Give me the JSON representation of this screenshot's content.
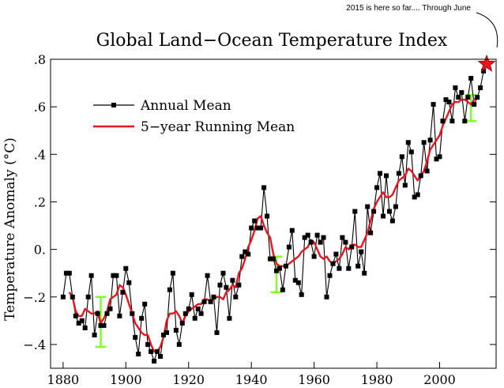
{
  "annotation": "2015 is here so far.... Through June",
  "chart_data": {
    "type": "line",
    "title": "Global Land−Ocean Temperature Index",
    "xlabel": "",
    "ylabel": "Temperature Anomaly (°C)",
    "xlim": [
      1876,
      2018
    ],
    "ylim": [
      -0.5,
      0.8
    ],
    "xticks": [
      1880,
      1900,
      1920,
      1940,
      1960,
      1980,
      2000
    ],
    "xtick_labels": [
      "1880",
      "1900",
      "1920",
      "1940",
      "1960",
      "1980",
      "2000"
    ],
    "yticks": [
      -0.4,
      -0.2,
      0.0,
      0.2,
      0.4,
      0.6,
      0.8
    ],
    "ytick_labels": [
      "−.4",
      "−.2",
      "0.",
      ".2",
      ".4",
      ".6",
      ".8"
    ],
    "legend_position": "upper-left",
    "series": [
      {
        "name": "Annual Mean",
        "color": "#000000",
        "marker": "square",
        "x": [
          1880,
          1881,
          1882,
          1883,
          1884,
          1885,
          1886,
          1887,
          1888,
          1889,
          1890,
          1891,
          1892,
          1893,
          1894,
          1895,
          1896,
          1897,
          1898,
          1899,
          1900,
          1901,
          1902,
          1903,
          1904,
          1905,
          1906,
          1907,
          1908,
          1909,
          1910,
          1911,
          1912,
          1913,
          1914,
          1915,
          1916,
          1917,
          1918,
          1919,
          1920,
          1921,
          1922,
          1923,
          1924,
          1925,
          1926,
          1927,
          1928,
          1929,
          1930,
          1931,
          1932,
          1933,
          1934,
          1935,
          1936,
          1937,
          1938,
          1939,
          1940,
          1941,
          1942,
          1943,
          1944,
          1945,
          1946,
          1947,
          1948,
          1949,
          1950,
          1951,
          1952,
          1953,
          1954,
          1955,
          1956,
          1957,
          1958,
          1959,
          1960,
          1961,
          1962,
          1963,
          1964,
          1965,
          1966,
          1967,
          1968,
          1969,
          1970,
          1971,
          1972,
          1973,
          1974,
          1975,
          1976,
          1977,
          1978,
          1979,
          1980,
          1981,
          1982,
          1983,
          1984,
          1985,
          1986,
          1987,
          1988,
          1989,
          1990,
          1991,
          1992,
          1993,
          1994,
          1995,
          1996,
          1997,
          1998,
          1999,
          2000,
          2001,
          2002,
          2003,
          2004,
          2005,
          2006,
          2007,
          2008,
          2009,
          2010,
          2011,
          2012,
          2013,
          2014
        ],
        "y": [
          -0.2,
          -0.1,
          -0.1,
          -0.2,
          -0.28,
          -0.31,
          -0.3,
          -0.33,
          -0.2,
          -0.11,
          -0.36,
          -0.27,
          -0.32,
          -0.32,
          -0.27,
          -0.25,
          -0.11,
          -0.11,
          -0.28,
          -0.18,
          -0.08,
          -0.14,
          -0.27,
          -0.37,
          -0.44,
          -0.29,
          -0.23,
          -0.4,
          -0.43,
          -0.47,
          -0.43,
          -0.45,
          -0.36,
          -0.35,
          -0.17,
          -0.1,
          -0.34,
          -0.4,
          -0.31,
          -0.27,
          -0.25,
          -0.19,
          -0.29,
          -0.25,
          -0.27,
          -0.22,
          -0.11,
          -0.22,
          -0.2,
          -0.35,
          -0.15,
          -0.1,
          -0.16,
          -0.29,
          -0.13,
          -0.2,
          -0.15,
          -0.03,
          -0.01,
          -0.02,
          0.09,
          0.12,
          0.09,
          0.09,
          0.26,
          0.14,
          -0.04,
          -0.04,
          -0.09,
          -0.08,
          -0.17,
          -0.07,
          0.01,
          0.08,
          -0.13,
          -0.14,
          -0.19,
          0.05,
          0.06,
          0.03,
          -0.03,
          0.06,
          0.03,
          0.05,
          -0.2,
          -0.11,
          -0.06,
          -0.02,
          -0.08,
          0.05,
          0.03,
          -0.08,
          0.01,
          0.16,
          -0.07,
          -0.01,
          -0.1,
          0.18,
          0.07,
          0.16,
          0.26,
          0.32,
          0.14,
          0.31,
          0.16,
          0.12,
          0.18,
          0.32,
          0.39,
          0.27,
          0.45,
          0.41,
          0.22,
          0.23,
          0.31,
          0.45,
          0.33,
          0.46,
          0.61,
          0.38,
          0.39,
          0.54,
          0.63,
          0.62,
          0.54,
          0.68,
          0.64,
          0.66,
          0.54,
          0.64,
          0.72,
          0.61,
          0.64,
          0.68,
          0.75
        ]
      },
      {
        "name": "5−year Running Mean",
        "color": "#e8141e",
        "x": [
          1882,
          1883,
          1884,
          1885,
          1886,
          1887,
          1888,
          1889,
          1890,
          1891,
          1892,
          1893,
          1894,
          1895,
          1896,
          1897,
          1898,
          1899,
          1900,
          1901,
          1902,
          1903,
          1904,
          1905,
          1906,
          1907,
          1908,
          1909,
          1910,
          1911,
          1912,
          1913,
          1914,
          1915,
          1916,
          1917,
          1918,
          1919,
          1920,
          1921,
          1922,
          1923,
          1924,
          1925,
          1926,
          1927,
          1928,
          1929,
          1930,
          1931,
          1932,
          1933,
          1934,
          1935,
          1936,
          1937,
          1938,
          1939,
          1940,
          1941,
          1942,
          1943,
          1944,
          1945,
          1946,
          1947,
          1948,
          1949,
          1950,
          1951,
          1952,
          1953,
          1954,
          1955,
          1956,
          1957,
          1958,
          1959,
          1960,
          1961,
          1962,
          1963,
          1964,
          1965,
          1966,
          1967,
          1968,
          1969,
          1970,
          1971,
          1972,
          1973,
          1974,
          1975,
          1976,
          1977,
          1978,
          1979,
          1980,
          1981,
          1982,
          1983,
          1984,
          1985,
          1986,
          1987,
          1988,
          1989,
          1990,
          1991,
          1992,
          1993,
          1994,
          1995,
          1996,
          1997,
          1998,
          1999,
          2000,
          2001,
          2002,
          2003,
          2004,
          2005,
          2006,
          2007,
          2008,
          2009,
          2010,
          2011,
          2012
        ],
        "y": [
          -0.18,
          -0.2,
          -0.26,
          -0.28,
          -0.28,
          -0.25,
          -0.26,
          -0.27,
          -0.27,
          -0.26,
          -0.31,
          -0.29,
          -0.26,
          -0.21,
          -0.2,
          -0.19,
          -0.15,
          -0.16,
          -0.19,
          -0.23,
          -0.27,
          -0.31,
          -0.33,
          -0.35,
          -0.36,
          -0.36,
          -0.4,
          -0.43,
          -0.43,
          -0.41,
          -0.37,
          -0.3,
          -0.27,
          -0.27,
          -0.26,
          -0.28,
          -0.31,
          -0.28,
          -0.26,
          -0.25,
          -0.24,
          -0.23,
          -0.23,
          -0.21,
          -0.21,
          -0.22,
          -0.21,
          -0.2,
          -0.2,
          -0.21,
          -0.18,
          -0.17,
          -0.15,
          -0.16,
          -0.1,
          -0.08,
          -0.04,
          0.01,
          0.04,
          0.08,
          0.13,
          0.14,
          0.1,
          0.07,
          0.05,
          -0.02,
          -0.06,
          -0.07,
          -0.07,
          -0.07,
          -0.06,
          -0.05,
          -0.04,
          -0.03,
          -0.01,
          0.0,
          0.01,
          0.04,
          0.03,
          0.0,
          -0.03,
          -0.04,
          -0.03,
          -0.05,
          -0.06,
          -0.05,
          -0.04,
          -0.02,
          0.01,
          0.0,
          0.02,
          0.02,
          0.01,
          0.01,
          0.04,
          0.07,
          0.12,
          0.17,
          0.2,
          0.22,
          0.24,
          0.22,
          0.22,
          0.23,
          0.26,
          0.29,
          0.3,
          0.31,
          0.34,
          0.33,
          0.31,
          0.29,
          0.31,
          0.33,
          0.37,
          0.42,
          0.44,
          0.46,
          0.48,
          0.52,
          0.55,
          0.58,
          0.61,
          0.62,
          0.62,
          0.63,
          0.63,
          0.62,
          0.61,
          0.63,
          0.64
        ]
      }
    ],
    "error_bars": [
      {
        "x": 1892,
        "low": -0.41,
        "high": -0.2,
        "color": "#80ff2a"
      },
      {
        "x": 1948,
        "low": -0.18,
        "high": -0.03,
        "color": "#80ff2a"
      },
      {
        "x": 2010,
        "low": 0.54,
        "high": 0.65,
        "color": "#80ff2a"
      }
    ],
    "highlight_point": {
      "x": 2015,
      "y": 0.78,
      "color": "#e8141e",
      "marker": "star"
    }
  }
}
